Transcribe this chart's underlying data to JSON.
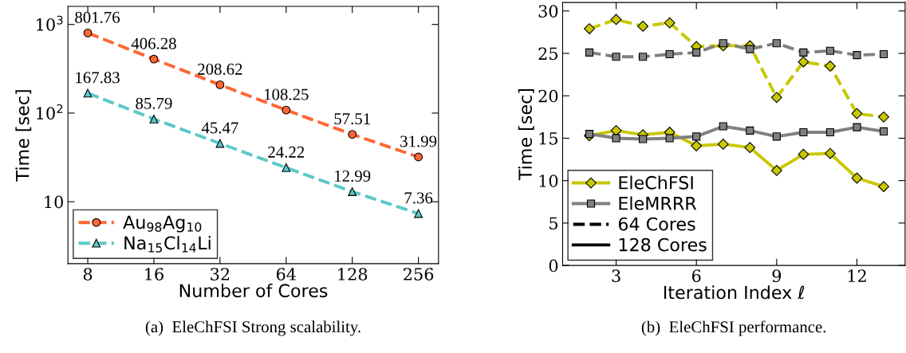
{
  "chart_data": [
    {
      "type": "line",
      "title": "(a)  EleChFSI Strong scalability.",
      "xlabel": "Number of Cores",
      "ylabel": "Time [sec]",
      "log": "xy",
      "x": [
        8,
        16,
        32,
        64,
        128,
        256
      ],
      "xlim": [
        6.5,
        316
      ],
      "xticks": [
        8,
        16,
        32,
        64,
        128,
        256
      ],
      "ylim": [
        2,
        1600
      ],
      "yticks": [
        {
          "value": 10,
          "label": "10"
        },
        {
          "value": 100,
          "label": "10$^{2}$"
        },
        {
          "value": 1000,
          "label": "10$^{3}$"
        }
      ],
      "data_labels": true,
      "legend": "bottom left",
      "grid": false,
      "series": [
        {
          "name": "Au$_{98}$Ag$_{10}$",
          "color": "#ff6633",
          "marker": "circle",
          "line_style": "dashed",
          "values": [
            801.76,
            406.28,
            208.62,
            108.25,
            57.51,
            31.99
          ]
        },
        {
          "name": "Na$_{15}$Cl$_{14}$Li",
          "color": "#5bc8c8",
          "marker": "triangle",
          "line_style": "dashed",
          "values": [
            167.83,
            85.79,
            45.47,
            24.22,
            12.99,
            7.36
          ]
        }
      ]
    },
    {
      "type": "line",
      "title": "(b)  EleChFSI performance.",
      "xlabel": "Iteration Index ℓ",
      "ylabel": "Time [sec]",
      "x": [
        2,
        3,
        4,
        5,
        6,
        7,
        8,
        9,
        10,
        11,
        12,
        13
      ],
      "xlim": [
        1,
        13.8
      ],
      "xticks": [
        3,
        6,
        9,
        12
      ],
      "ylim": [
        0,
        31
      ],
      "yticks": [
        0,
        5,
        10,
        15,
        20,
        25,
        30
      ],
      "legend": "bottom left",
      "grid": false,
      "annotations": [
        "64 Cores",
        "128 Cores"
      ],
      "series": [
        {
          "color": "#c8c800",
          "marker": "diamond",
          "line_style": "dashed",
          "values": [
            27.9,
            29.0,
            28.2,
            28.6,
            25.8,
            25.9,
            25.9,
            19.8,
            24.0,
            23.5,
            17.9,
            17.5
          ]
        },
        {
          "color": "#808080",
          "marker": "square",
          "line_style": "dashed",
          "values": [
            25.1,
            24.6,
            24.6,
            24.9,
            25.1,
            26.2,
            25.5,
            26.2,
            25.1,
            25.3,
            24.8,
            24.9
          ]
        },
        {
          "name": "EleChFSI",
          "color": "#c8c800",
          "marker": "diamond",
          "line_style": "solid",
          "values": [
            15.3,
            15.9,
            15.4,
            15.7,
            14.1,
            14.3,
            13.9,
            11.2,
            13.1,
            13.2,
            10.3,
            9.3
          ]
        },
        {
          "name": "EleMRRR",
          "color": "#808080",
          "marker": "square",
          "line_style": "solid",
          "values": [
            15.5,
            15.0,
            14.9,
            15.0,
            15.2,
            16.4,
            15.9,
            15.2,
            15.7,
            15.7,
            16.3,
            15.8
          ]
        }
      ]
    }
  ]
}
